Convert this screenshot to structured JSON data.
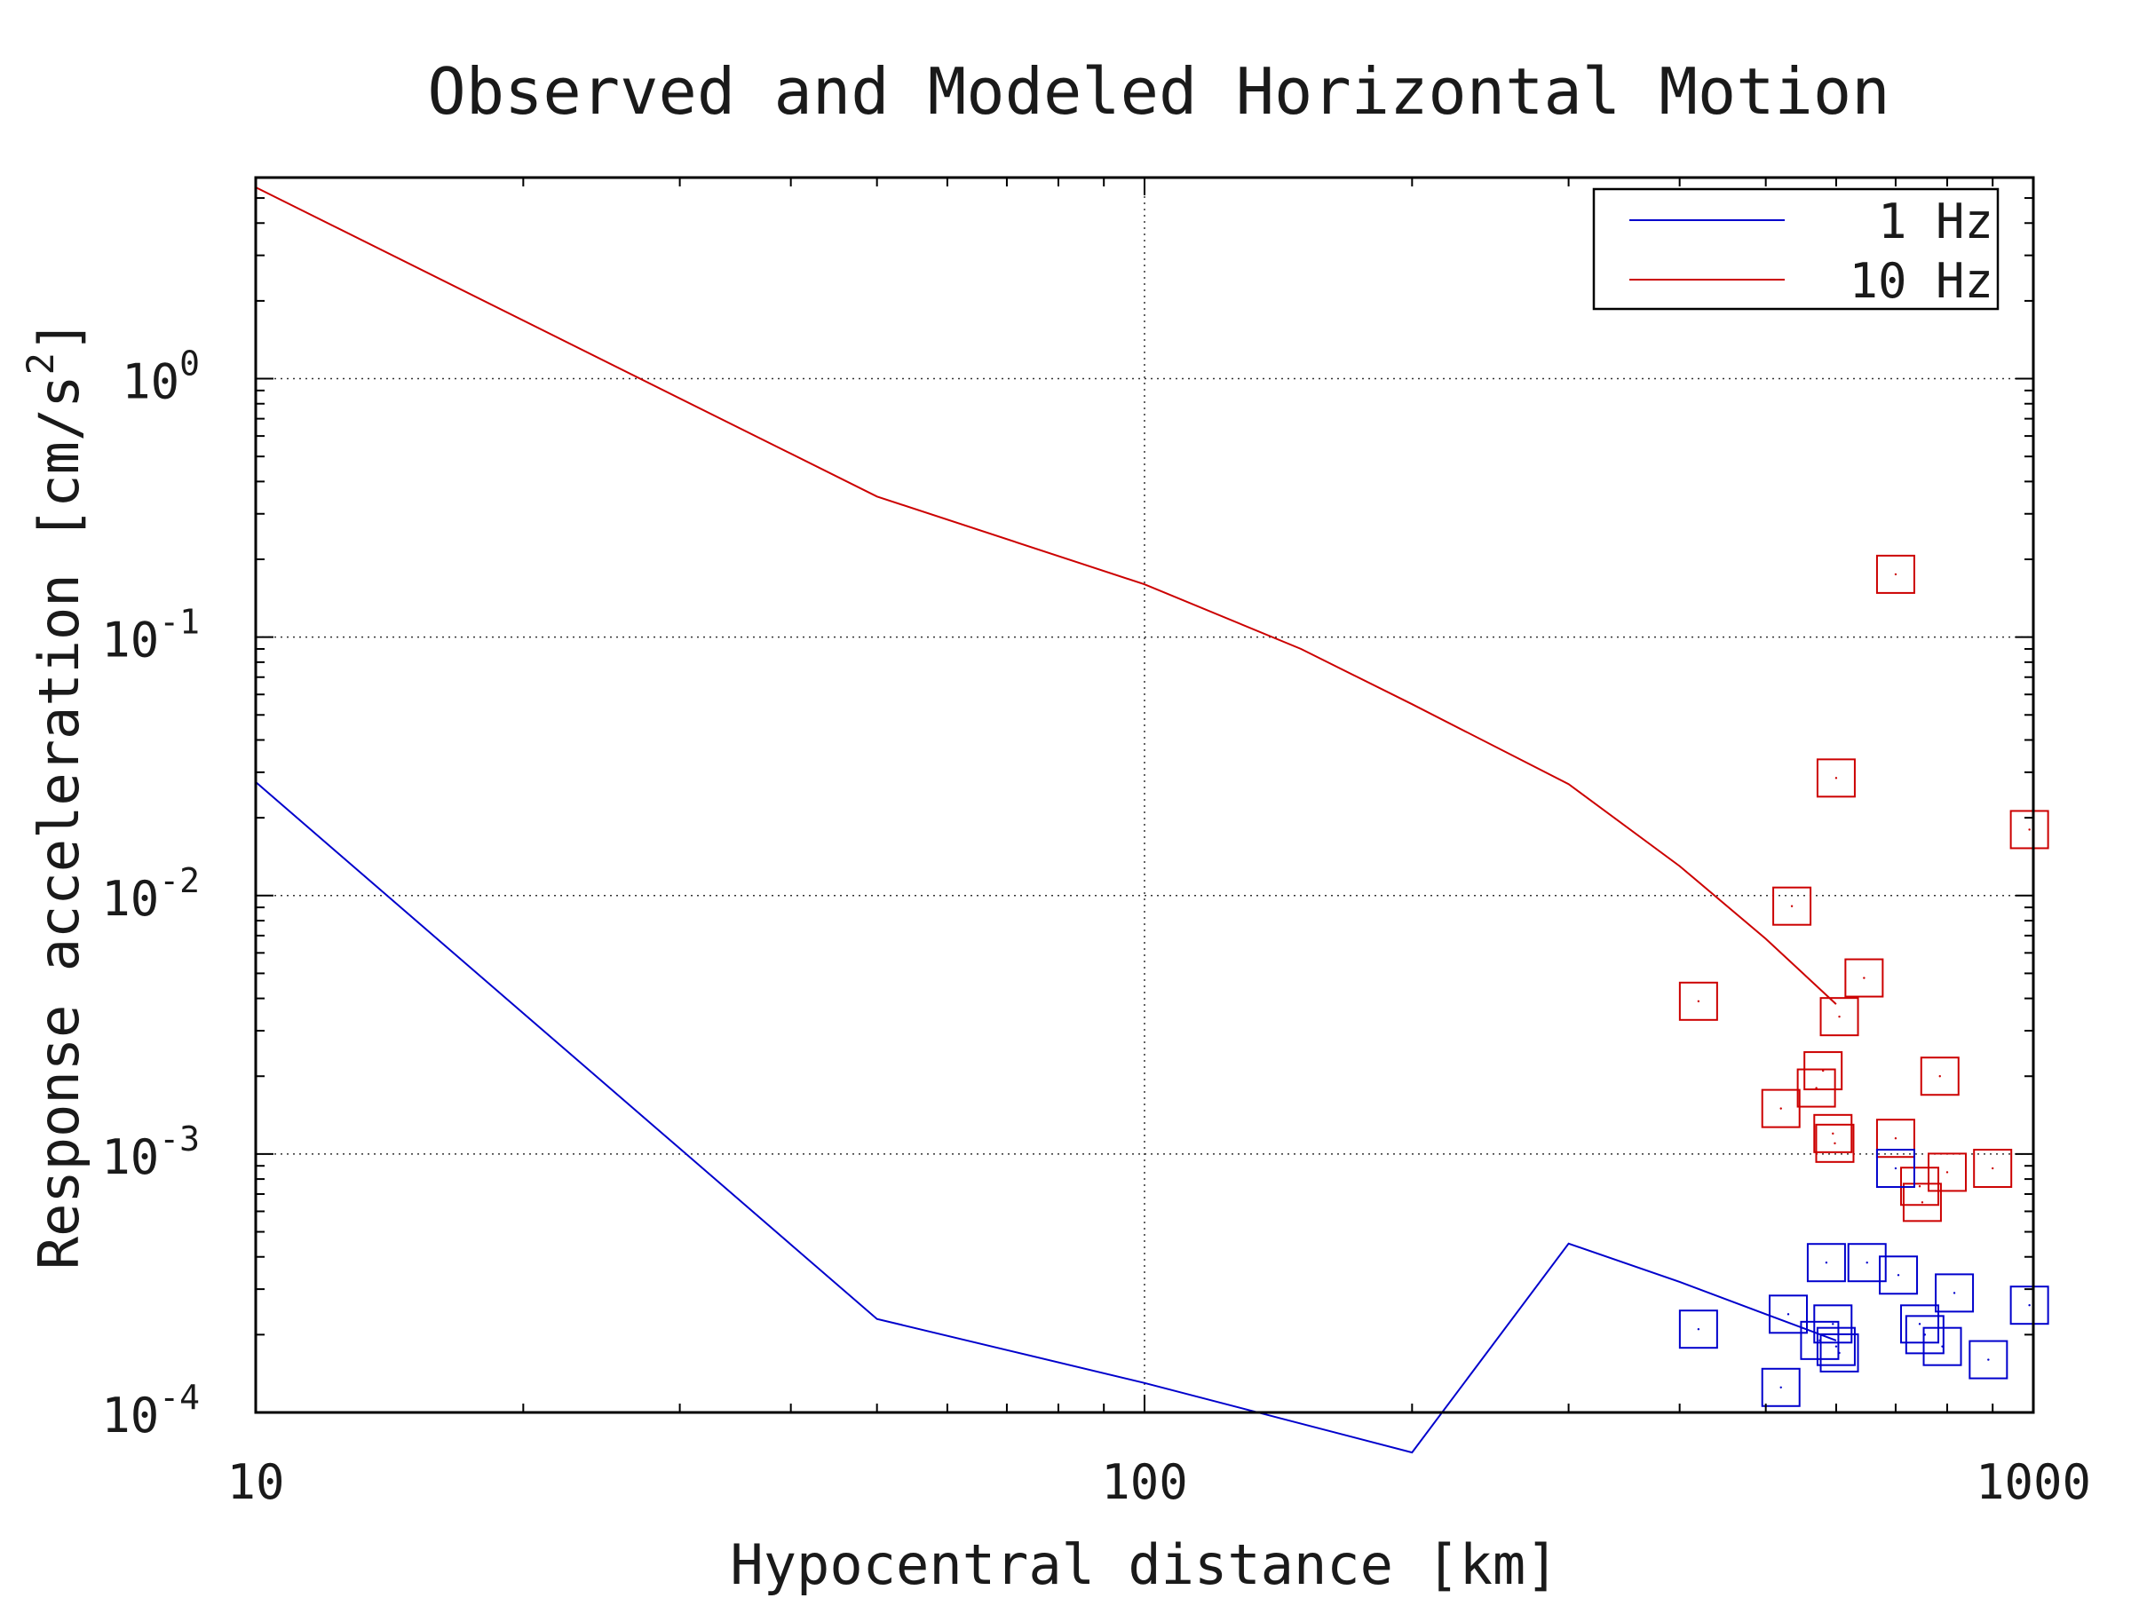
{
  "chart_data": {
    "type": "scatter",
    "title": "Observed and Modeled Horizontal Motion",
    "xlabel": "Hypocentral distance [km]",
    "ylabel_main": "Response acceleration [cm/s",
    "ylabel_sup": "2",
    "ylabel_end": "]",
    "x_scale": "log",
    "y_scale": "log",
    "xlim": [
      10,
      1000
    ],
    "ylim": [
      0.0001,
      6
    ],
    "grid": true,
    "legend_position": "top-right",
    "x_ticks": [
      {
        "value": 10,
        "label": "10"
      },
      {
        "value": 100,
        "label": "100"
      },
      {
        "value": 1000,
        "label": "1000"
      }
    ],
    "y_ticks": [
      {
        "value": 1,
        "base": "10",
        "exp": "0"
      },
      {
        "value": 0.1,
        "base": "10",
        "exp": "-1"
      },
      {
        "value": 0.01,
        "base": "10",
        "exp": "-2"
      },
      {
        "value": 0.001,
        "base": "10",
        "exp": "-3"
      },
      {
        "value": 0.0001,
        "base": "10",
        "exp": "-4"
      }
    ],
    "series": [
      {
        "name": "1 Hz",
        "kind": "line",
        "color": "#0000cc",
        "x": [
          10,
          50,
          100,
          200,
          300,
          400,
          500,
          600
        ],
        "y": [
          0.0275,
          0.00023,
          0.00013,
          7e-05,
          0.00045,
          0.00032,
          0.00024,
          0.00019
        ]
      },
      {
        "name": "10 Hz",
        "kind": "line",
        "color": "#cc0000",
        "x": [
          10,
          50,
          100,
          150,
          200,
          300,
          400,
          500,
          600
        ],
        "y": [
          5.5,
          0.35,
          0.16,
          0.09,
          0.055,
          0.027,
          0.013,
          0.0068,
          0.0038
        ]
      }
    ],
    "scatter": [
      {
        "series": "10 Hz",
        "color": "#cc0000",
        "points": [
          {
            "x": 420,
            "y": 0.0039
          },
          {
            "x": 520,
            "y": 0.0015
          },
          {
            "x": 535,
            "y": 0.0091
          },
          {
            "x": 570,
            "y": 0.0018
          },
          {
            "x": 580,
            "y": 0.0021
          },
          {
            "x": 595,
            "y": 0.0012
          },
          {
            "x": 598,
            "y": 0.0011
          },
          {
            "x": 600,
            "y": 0.0285
          },
          {
            "x": 605,
            "y": 0.0034
          },
          {
            "x": 645,
            "y": 0.0048
          },
          {
            "x": 700,
            "y": 0.175
          },
          {
            "x": 700,
            "y": 0.00115
          },
          {
            "x": 745,
            "y": 0.00075
          },
          {
            "x": 750,
            "y": 0.00065
          },
          {
            "x": 785,
            "y": 0.002
          },
          {
            "x": 800,
            "y": 0.00085
          },
          {
            "x": 900,
            "y": 0.00088
          },
          {
            "x": 990,
            "y": 0.018
          }
        ]
      },
      {
        "series": "1 Hz",
        "color": "#0000cc",
        "points": [
          {
            "x": 420,
            "y": 0.00021
          },
          {
            "x": 520,
            "y": 0.000125
          },
          {
            "x": 530,
            "y": 0.00024
          },
          {
            "x": 575,
            "y": 0.00019
          },
          {
            "x": 585,
            "y": 0.00038
          },
          {
            "x": 595,
            "y": 0.00022
          },
          {
            "x": 600,
            "y": 0.00018
          },
          {
            "x": 605,
            "y": 0.00017
          },
          {
            "x": 650,
            "y": 0.00038
          },
          {
            "x": 700,
            "y": 0.00088
          },
          {
            "x": 705,
            "y": 0.00034
          },
          {
            "x": 745,
            "y": 0.00022
          },
          {
            "x": 755,
            "y": 0.0002
          },
          {
            "x": 790,
            "y": 0.00018
          },
          {
            "x": 815,
            "y": 0.00029
          },
          {
            "x": 890,
            "y": 0.00016
          },
          {
            "x": 990,
            "y": 0.00026
          }
        ]
      }
    ]
  }
}
